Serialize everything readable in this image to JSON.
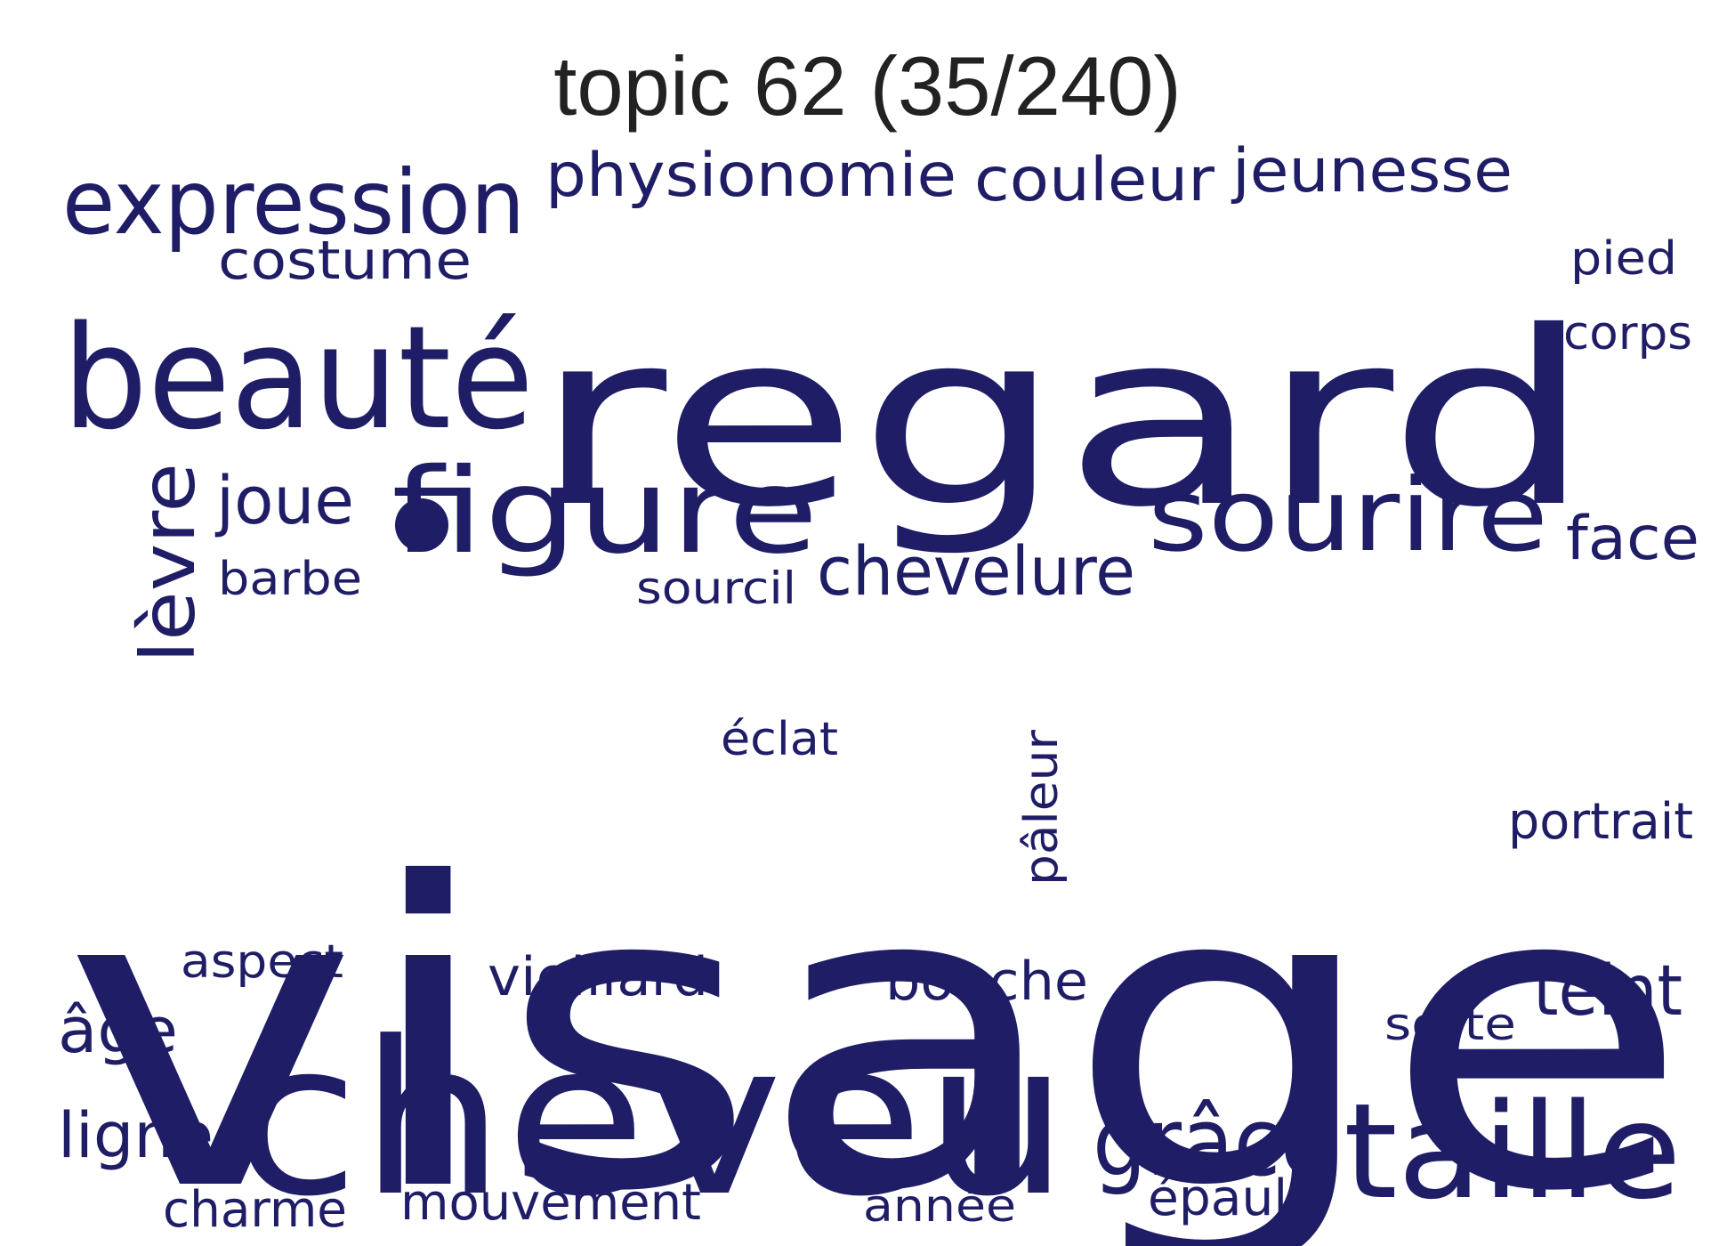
{
  "title": "topic 62 (35/240)",
  "color": "#1f1d66",
  "words": [
    {
      "text": "visage",
      "weight": 1.0
    },
    {
      "text": "regard",
      "weight": 0.55
    },
    {
      "text": "cheveu",
      "weight": 0.4
    },
    {
      "text": "beauté",
      "weight": 0.24
    },
    {
      "text": "figure",
      "weight": 0.2
    },
    {
      "text": "sourire",
      "weight": 0.18
    },
    {
      "text": "taille",
      "weight": 0.2
    },
    {
      "text": "expression",
      "weight": 0.14
    },
    {
      "text": "grâce",
      "weight": 0.14
    },
    {
      "text": "lèvre",
      "weight": 0.12
    },
    {
      "text": "physionomie",
      "weight": 0.1
    },
    {
      "text": "couleur",
      "weight": 0.1
    },
    {
      "text": "jeunesse",
      "weight": 0.1
    },
    {
      "text": "chevelure",
      "weight": 0.1
    },
    {
      "text": "joue",
      "weight": 0.1
    },
    {
      "text": "teint",
      "weight": 0.09
    },
    {
      "text": "face",
      "weight": 0.09
    },
    {
      "text": "costume",
      "weight": 0.08
    },
    {
      "text": "bouche",
      "weight": 0.08
    },
    {
      "text": "vieillard",
      "weight": 0.08
    },
    {
      "text": "ligne",
      "weight": 0.08
    },
    {
      "text": "âge",
      "weight": 0.08
    },
    {
      "text": "pâleur",
      "weight": 0.07
    },
    {
      "text": "portrait",
      "weight": 0.07
    },
    {
      "text": "mouvement",
      "weight": 0.07
    },
    {
      "text": "charme",
      "weight": 0.07
    },
    {
      "text": "épaule",
      "weight": 0.07
    },
    {
      "text": "pied",
      "weight": 0.06
    },
    {
      "text": "corps",
      "weight": 0.06
    },
    {
      "text": "barbe",
      "weight": 0.06
    },
    {
      "text": "aspect",
      "weight": 0.06
    },
    {
      "text": "éclat",
      "weight": 0.06
    },
    {
      "text": "sourcil",
      "weight": 0.06
    },
    {
      "text": "sorte",
      "weight": 0.06
    },
    {
      "text": "année",
      "weight": 0.06
    }
  ]
}
